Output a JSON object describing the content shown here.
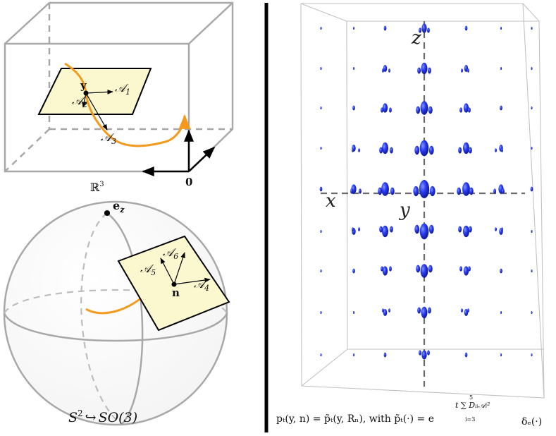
{
  "left_top": {
    "space_label": "ℝ",
    "space_sup": "3",
    "origin_label": "0",
    "point_label": "y",
    "frame": {
      "a1": "𝒜",
      "a1_sub": "1",
      "a2": "𝒜",
      "a2_sub": "2",
      "a3": "𝒜",
      "a3_sub": "3"
    }
  },
  "left_bottom": {
    "pole_label": "e",
    "pole_sub": "z",
    "point_label": "n",
    "frame": {
      "a4": "𝒜",
      "a4_sub": "4",
      "a5": "𝒜",
      "a5_sub": "5",
      "a6": "𝒜",
      "a6_sub": "6"
    },
    "caption_lhs": "S",
    "caption_sup": "2",
    "caption_arrow": "↪",
    "caption_rhs": "SO(3)"
  },
  "right": {
    "axis_z": "z",
    "axis_x": "x",
    "axis_y": "y"
  },
  "formula": {
    "text": "pₜ(y, n) = p̃ₜ(y, Rₙ), with p̃ₜ(·) = e",
    "exponent": "t ∑ Dᵢᵢ𝒜ᵢ²",
    "sum_top": "5",
    "sum_bottom": "i=3",
    "tail": "δₑ(·)"
  },
  "colors": {
    "curve": "#f39a1e",
    "tangent_fill": "#fbf7cf",
    "blob": "#1f33e6",
    "divider": "#000000",
    "box_edge": "#a8a8a8"
  }
}
